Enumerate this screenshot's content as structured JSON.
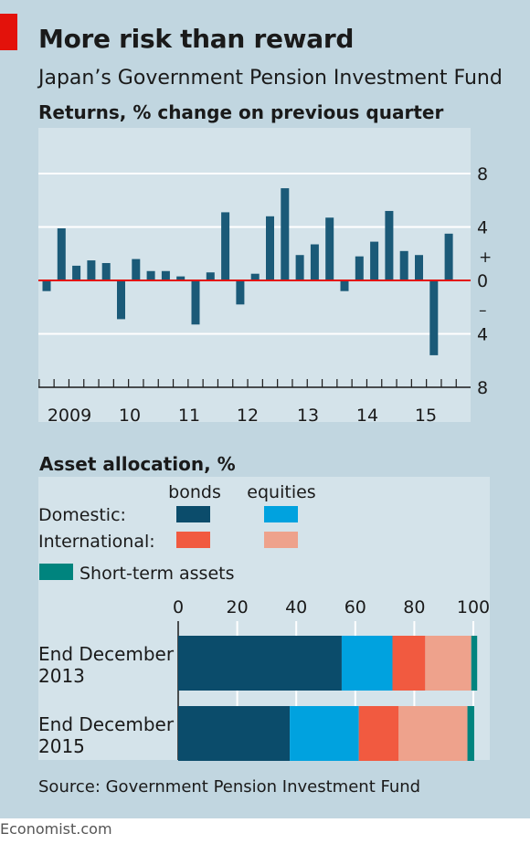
{
  "header": {
    "title": "More risk than reward",
    "subtitle": "Japan’s Government Pension Investment Fund"
  },
  "source": "Source: Government Pension Investment Fund",
  "footer": "Economist.com",
  "colors": {
    "bar": "#1b5a78",
    "zero_line": "#e3120b",
    "domestic_bonds": "#0b4c6b",
    "domestic_equities": "#00a2df",
    "international_bonds": "#f15a40",
    "international_equities": "#eea28c",
    "short_term": "#00847e"
  },
  "chart_data": [
    {
      "type": "bar",
      "title": "Returns, % change on previous quarter",
      "x_labels": [
        "2009",
        "10",
        "11",
        "12",
        "13",
        "14",
        "15"
      ],
      "values": [
        -0.8,
        3.9,
        1.1,
        1.5,
        1.3,
        -2.9,
        1.6,
        0.7,
        0.7,
        0.3,
        -3.3,
        0.6,
        5.1,
        -1.8,
        0.5,
        4.8,
        6.9,
        1.9,
        2.7,
        4.7,
        -0.8,
        1.8,
        2.9,
        5.2,
        2.2,
        1.9,
        -5.6,
        3.5
      ],
      "y_ticks": [
        {
          "value": 8,
          "label": "8"
        },
        {
          "value": 4,
          "label": "4"
        },
        {
          "value": 0,
          "label": "0"
        },
        {
          "value": -4,
          "label": "4"
        },
        {
          "value": -8,
          "label": "8"
        }
      ],
      "sign_labels": {
        "plus": "+",
        "minus": "–"
      },
      "ylim": [
        -8,
        8
      ],
      "grid": true
    },
    {
      "type": "bar",
      "orientation": "horizontal",
      "stacked": true,
      "title": "Asset allocation, %",
      "legend": {
        "col_bonds": "bonds",
        "col_equities": "equities",
        "row_domestic": "Domestic:",
        "row_international": "International:",
        "short_term": "Short-term assets"
      },
      "x_ticks": [
        "0",
        "20",
        "40",
        "60",
        "80",
        "100"
      ],
      "xlim": [
        0,
        100
      ],
      "categories": [
        {
          "line1": "End December",
          "line2": "2013"
        },
        {
          "line1": "End December",
          "line2": "2015"
        }
      ],
      "series": [
        {
          "name": "Domestic bonds",
          "values": [
            55.4,
            37.8
          ]
        },
        {
          "name": "Domestic equities",
          "values": [
            17.2,
            23.4
          ]
        },
        {
          "name": "International bonds",
          "values": [
            11.1,
            13.5
          ]
        },
        {
          "name": "International equities",
          "values": [
            15.6,
            23.3
          ]
        },
        {
          "name": "Short-term assets",
          "values": [
            2.0,
            2.3
          ]
        }
      ]
    }
  ]
}
